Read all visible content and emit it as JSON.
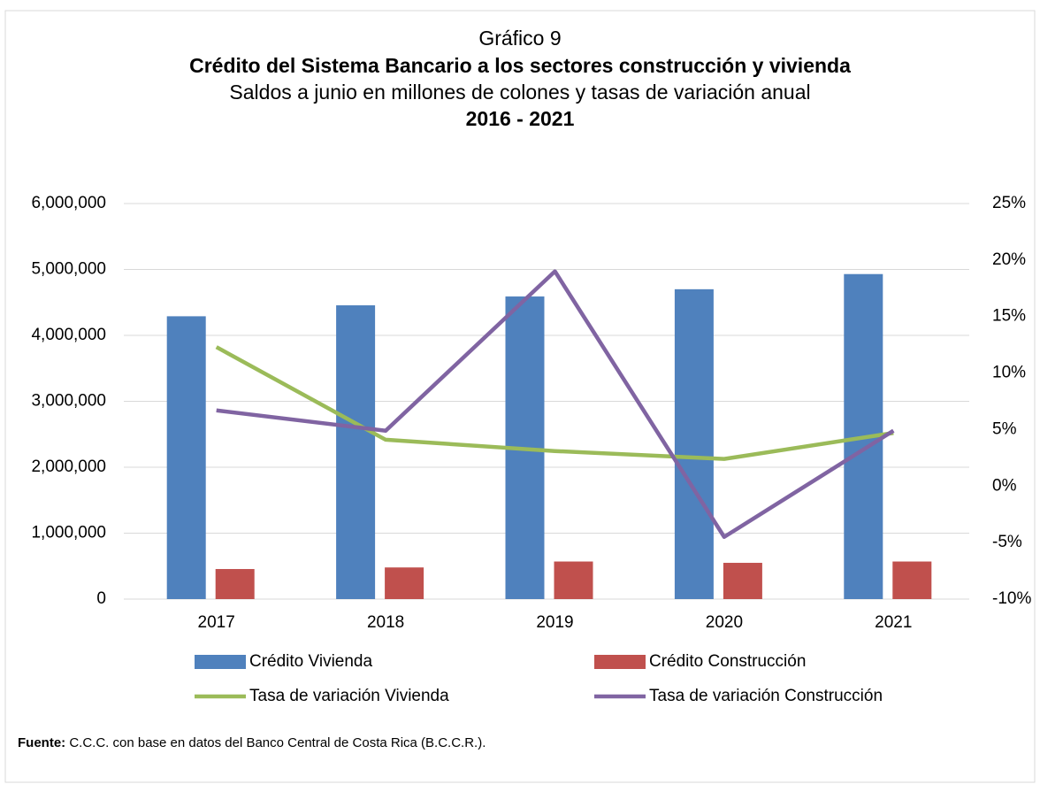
{
  "chart_data": {
    "type": "bar_line",
    "title": "Gráfico 9",
    "subtitle": "Crédito del Sistema Bancario a los sectores construcción y vivienda",
    "subtitle2": "Saldos a junio en millones de colones y tasas de variación anual",
    "period": "2016 - 2021",
    "categories": [
      "2017",
      "2018",
      "2019",
      "2020",
      "2021"
    ],
    "series": [
      {
        "name": "Crédito Vivienda",
        "color": "#4f81bd",
        "kind": "bar",
        "values": [
          4290000,
          4456000,
          4590000,
          4700000,
          4930000
        ]
      },
      {
        "name": "Crédito Construcción",
        "color": "#c0504d",
        "kind": "bar",
        "values": [
          456000,
          480000,
          570000,
          550000,
          570000
        ]
      },
      {
        "name": "Tasa de variación Vivienda",
        "color": "#9bbb59",
        "kind": "line",
        "axis": "y2",
        "values": [
          12.3,
          4.1,
          3.1,
          2.4,
          4.7
        ]
      },
      {
        "name": "Tasa de variación Construcción",
        "color": "#8064a2",
        "kind": "line",
        "axis": "y2",
        "values": [
          6.7,
          4.9,
          19.0,
          -4.5,
          4.9
        ]
      }
    ],
    "ylim": [
      0,
      6000000
    ],
    "yticks": [
      0,
      {
        "value": 1000000,
        "label": "1,000,000"
      },
      {
        "value": 2000000,
        "label": "2,000,000"
      },
      {
        "value": 3000000,
        "label": "3,000,000"
      },
      {
        "value": 4000000,
        "label": "4,000,000"
      },
      {
        "value": 5000000,
        "label": "5,000,000"
      },
      {
        "value": 6000000,
        "label": "6,000,000"
      }
    ],
    "y2lim": [
      -10,
      25
    ],
    "y2ticks": [
      {
        "value": -10,
        "label": "-10%"
      },
      {
        "value": -5,
        "label": "-5%"
      },
      {
        "value": 0,
        "label": "0%"
      },
      {
        "value": 5,
        "label": "5%"
      },
      {
        "value": 10,
        "label": "10%"
      },
      {
        "value": 15,
        "label": "15%"
      },
      {
        "value": 20,
        "label": "20%"
      },
      {
        "value": 25,
        "label": "25%"
      }
    ],
    "grid": true,
    "source_label": "Fuente:",
    "source": "C.C.C. con base en datos del Banco Central de Costa Rica (B.C.C.R.)."
  }
}
